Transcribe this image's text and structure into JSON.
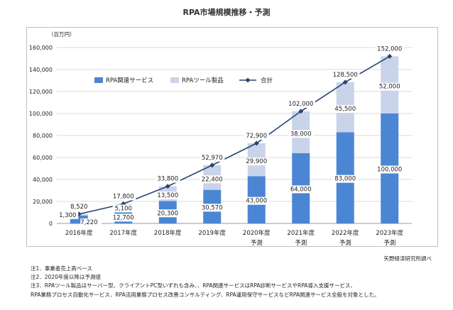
{
  "title": "RPA市場規模推移・予測",
  "chart_data": {
    "type": "bar",
    "stacked": true,
    "unit_label": "（百万円）",
    "categories": [
      "2016年度",
      "2017年度",
      "2018年度",
      "2019年度",
      "2020年度",
      "2021年度",
      "2022年度",
      "2023年度"
    ],
    "forecast_labels": [
      "",
      "",
      "",
      "",
      "予測",
      "予測",
      "予測",
      "予測"
    ],
    "series": [
      {
        "name": "RPA関連サービス",
        "type": "bar",
        "color": "#4a86d4",
        "values": [
          7220,
          12700,
          20300,
          30570,
          43000,
          64000,
          83000,
          100000
        ]
      },
      {
        "name": "RPAツール製品",
        "type": "bar",
        "color": "#c9d3ea",
        "values": [
          1300,
          5100,
          13500,
          22400,
          29900,
          38000,
          45500,
          52000
        ]
      },
      {
        "name": "合計",
        "type": "line",
        "color": "#27466e",
        "values": [
          8520,
          17800,
          33800,
          52970,
          72900,
          102000,
          128500,
          152000
        ]
      }
    ],
    "ylim": [
      0,
      160000
    ],
    "yticks": [
      0,
      20000,
      40000,
      60000,
      80000,
      100000,
      120000,
      140000,
      160000
    ],
    "ytick_labels": [
      "0",
      "20,000",
      "40,000",
      "60,000",
      "80,000",
      "100,000",
      "120,000",
      "140,000",
      "160,000"
    ],
    "data_labels": {
      "service": [
        "7,220",
        "12,700",
        "20,300",
        "30,570",
        "43,000",
        "64,000",
        "83,000",
        "100,000"
      ],
      "tool": [
        "1,300",
        "5,100",
        "13,500",
        "22,400",
        "29,900",
        "38,000",
        "45,500",
        "52,000"
      ],
      "total": [
        "8,520",
        "17,800",
        "33,800",
        "52,970",
        "72,900",
        "102,000",
        "128,500",
        "152,000"
      ]
    },
    "legend_position": "upper-left",
    "grid": true
  },
  "source": "矢野経済研究所調べ",
  "notes": [
    "注1．事業者売上高ベース",
    "注2．2020年度以降は予測値",
    "注3．RPAツール製品はサーバー型、クライアントPC型いずれも含み、、RPA関連サービスはRPA診断サービスやRPA導入支援サービス、",
    "RPA業務プロセス自動化サービス、RPA活用業務プロセス改善コンサルティング、RPA運用保守サービスなどRPA関連サービス全般を対象とした。"
  ]
}
